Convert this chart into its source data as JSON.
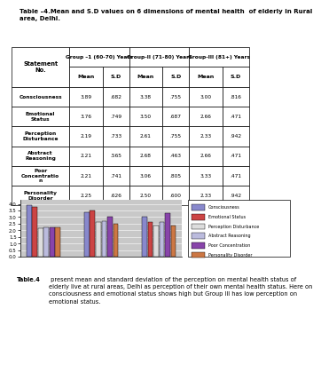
{
  "title": "Table –4.Mean and S.D values on 6 dimensions of mental health  of elderly in Rural\narea, Delhi.",
  "group_labels": [
    "Group –1 (60-70) Years",
    "Group-II (71-80) Years",
    "Group-III (81+) Years"
  ],
  "col_subheaders": [
    "Mean",
    "S.D",
    "Mean",
    "S.D",
    "Mean",
    "S.D"
  ],
  "rows": [
    [
      "Consciousness",
      "3.89",
      ".682",
      "3.38",
      ".755",
      "3.00",
      ".816"
    ],
    [
      "Emotional\nStatus",
      "3.76",
      ".749",
      "3.50",
      ".687",
      "2.66",
      ".471"
    ],
    [
      "Perception\nDisturbance",
      "2.19",
      ".733",
      "2.61",
      ".755",
      "2.33",
      ".942"
    ],
    [
      "Abstract\nReasoning",
      "2.21",
      ".565",
      "2.68",
      ".463",
      "2.66",
      ".471"
    ],
    [
      "Poor\nConcentratio\nn",
      "2.21",
      ".741",
      "3.06",
      ".805",
      "3.33",
      ".471"
    ],
    [
      "Personality\nDisorder",
      "2.25",
      ".626",
      "2.50",
      ".600",
      "2.33",
      ".942"
    ]
  ],
  "bar_groups": [
    [
      3.89,
      3.76,
      2.19,
      2.21,
      2.21,
      2.25
    ],
    [
      3.38,
      3.5,
      2.61,
      2.68,
      3.06,
      2.5
    ],
    [
      3.0,
      2.66,
      2.33,
      2.66,
      3.33,
      2.33
    ]
  ],
  "bar_colors": [
    "#8888cc",
    "#cc4444",
    "#dddddd",
    "#bbbbdd",
    "#8844aa",
    "#cc7744"
  ],
  "legend_labels": [
    "Consciousness",
    "Emotional Status",
    "Perception Disturbance",
    "Abstract Reasoning",
    "Poor Concentration",
    "Personality Disorder"
  ],
  "legend_colors": [
    "#8888cc",
    "#cc4444",
    "#dddddd",
    "#bbbbdd",
    "#8844aa",
    "#cc7744"
  ],
  "yticks": [
    0,
    0.5,
    1.0,
    1.5,
    2.0,
    2.5,
    3.0,
    3.5,
    4.0
  ],
  "ylim": [
    0,
    4.3
  ],
  "footer_bold": "Table.4",
  "footer_text": " present mean and standard deviation of the perception on mental health status of\nelderly live at rural areas, Delhi as perception of their own mental health status. Here on\nconsciousness and emotional status shows high but Group III has low perception on\nemotional status."
}
